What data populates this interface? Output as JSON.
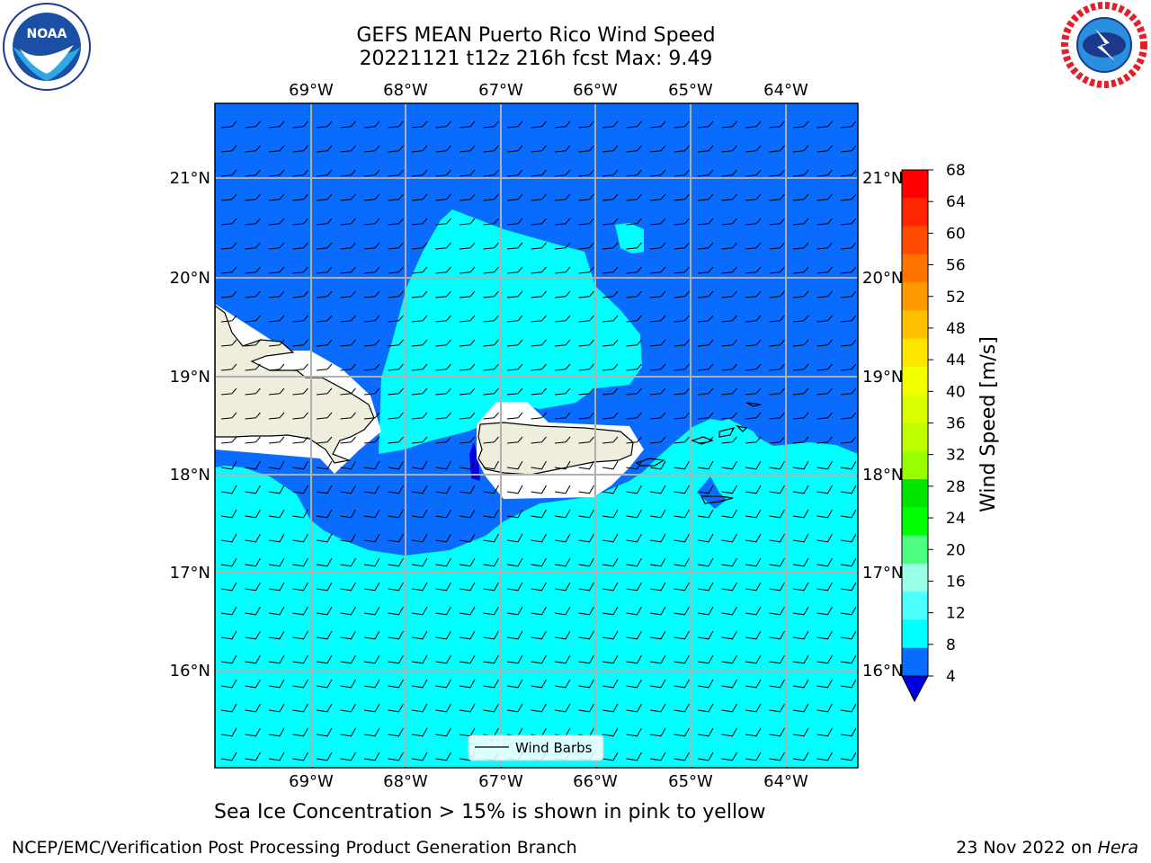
{
  "header": {
    "title_line1": "GEFS MEAN Puerto Rico Wind Speed",
    "title_line2": "20221121 t12z 216h fcst   Max: 9.49"
  },
  "map": {
    "lon_labels": [
      "69°W",
      "68°W",
      "67°W",
      "66°W",
      "65°W",
      "64°W"
    ],
    "lat_labels": [
      "21°N",
      "20°N",
      "19°N",
      "18°N",
      "17°N",
      "16°N"
    ],
    "legend_label": "Wind Barbs",
    "colors": {
      "band_4_8": "#0a6cff",
      "band_8_12": "#00ffff",
      "band_below_4": "#0000e0",
      "land": "#efeedc",
      "masked": "#ffffff",
      "grid": "#b0b0b0"
    }
  },
  "colorbar": {
    "label": "Wind Speed [m/s]",
    "ticks": [
      "68",
      "64",
      "60",
      "56",
      "52",
      "48",
      "44",
      "40",
      "36",
      "32",
      "28",
      "24",
      "20",
      "16",
      "12",
      "8",
      "4"
    ],
    "colors": [
      "#ff0000",
      "#ff2600",
      "#ff4c00",
      "#ff7300",
      "#ff9900",
      "#ffbf00",
      "#ffe600",
      "#f2ff00",
      "#d9ff00",
      "#bfff00",
      "#99ff00",
      "#00e600",
      "#00ff00",
      "#4dff80",
      "#99ffe6",
      "#4dffff",
      "#00ffff",
      "#0a6cff"
    ],
    "under_color": "#0000e0"
  },
  "subtitle": "Sea Ice Concentration > 15% is shown in pink to yellow",
  "footer": {
    "left": "NCEP/EMC/Verification Post Processing Product Generation Branch",
    "right_date": "23 Nov 2022 on ",
    "right_host": "Hera"
  },
  "logos": {
    "noaa_text": "NOAA",
    "nws_text": "NATIONAL WEATHER SERVICE"
  }
}
